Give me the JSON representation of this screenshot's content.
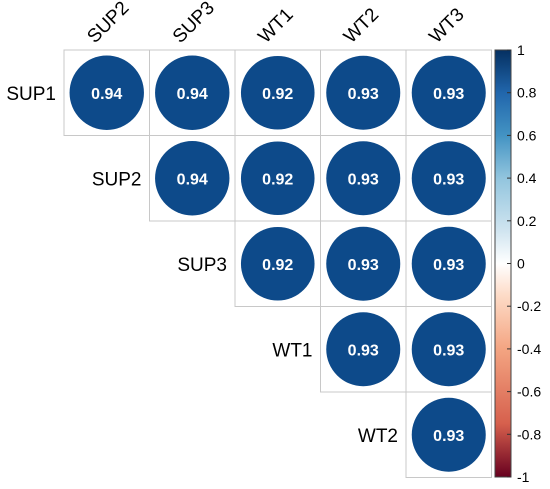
{
  "chart_data": {
    "type": "heatmap",
    "variant": "correlation-matrix-upper-triangle-circles",
    "title": "",
    "row_labels": [
      "SUP1",
      "SUP2",
      "SUP3",
      "WT1",
      "WT2"
    ],
    "col_labels": [
      "SUP2",
      "SUP3",
      "WT1",
      "WT2",
      "WT3"
    ],
    "cells": [
      {
        "row": "SUP1",
        "col": "SUP2",
        "value": 0.94,
        "label": "0.94"
      },
      {
        "row": "SUP1",
        "col": "SUP3",
        "value": 0.94,
        "label": "0.94"
      },
      {
        "row": "SUP1",
        "col": "WT1",
        "value": 0.92,
        "label": "0.92"
      },
      {
        "row": "SUP1",
        "col": "WT2",
        "value": 0.93,
        "label": "0.93"
      },
      {
        "row": "SUP1",
        "col": "WT3",
        "value": 0.93,
        "label": "0.93"
      },
      {
        "row": "SUP2",
        "col": "SUP3",
        "value": 0.94,
        "label": "0.94"
      },
      {
        "row": "SUP2",
        "col": "WT1",
        "value": 0.92,
        "label": "0.92"
      },
      {
        "row": "SUP2",
        "col": "WT2",
        "value": 0.93,
        "label": "0.93"
      },
      {
        "row": "SUP2",
        "col": "WT3",
        "value": 0.93,
        "label": "0.93"
      },
      {
        "row": "SUP3",
        "col": "WT1",
        "value": 0.92,
        "label": "0.92"
      },
      {
        "row": "SUP3",
        "col": "WT2",
        "value": 0.93,
        "label": "0.93"
      },
      {
        "row": "SUP3",
        "col": "WT3",
        "value": 0.93,
        "label": "0.93"
      },
      {
        "row": "WT1",
        "col": "WT2",
        "value": 0.93,
        "label": "0.93"
      },
      {
        "row": "WT1",
        "col": "WT3",
        "value": 0.93,
        "label": "0.93"
      },
      {
        "row": "WT2",
        "col": "WT3",
        "value": 0.93,
        "label": "0.93"
      }
    ],
    "colorbar": {
      "range": [
        -1,
        1
      ],
      "tick_labels": [
        "1",
        "0.8",
        "0.6",
        "0.4",
        "0.2",
        "0",
        "-0.2",
        "-0.4",
        "-0.6",
        "-0.8",
        "-1"
      ],
      "tick_values": [
        1,
        0.8,
        0.6,
        0.4,
        0.2,
        0,
        -0.2,
        -0.4,
        -0.6,
        -0.8,
        -1
      ],
      "stops": [
        {
          "value": -1,
          "color": "#67001f"
        },
        {
          "value": -0.75,
          "color": "#d6604d"
        },
        {
          "value": -0.4,
          "color": "#f4a582"
        },
        {
          "value": -0.15,
          "color": "#fddbc7"
        },
        {
          "value": 0,
          "color": "#ffffff"
        },
        {
          "value": 0.15,
          "color": "#d1e5f0"
        },
        {
          "value": 0.4,
          "color": "#92c5de"
        },
        {
          "value": 0.6,
          "color": "#4393c3"
        },
        {
          "value": 0.8,
          "color": "#2166ac"
        },
        {
          "value": 1,
          "color": "#053061"
        }
      ],
      "placement": "right"
    },
    "grid": true,
    "circle_color": "#0d4a8a",
    "grid_color": "#c8c8c8"
  }
}
